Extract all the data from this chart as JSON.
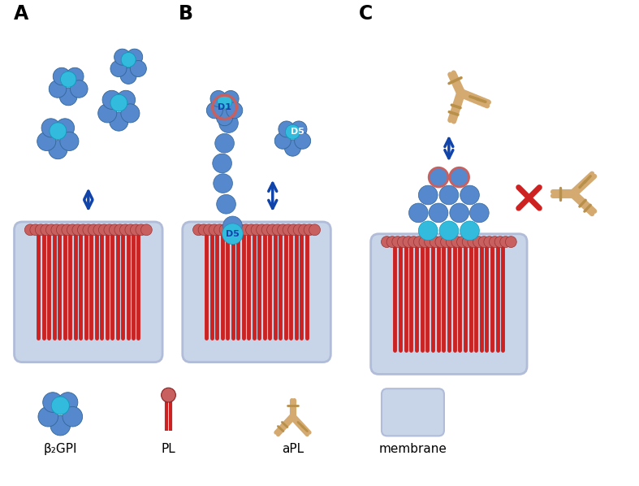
{
  "bg_color": "#ffffff",
  "membrane_color": "#c8d4e8",
  "membrane_border": "#b0bcd8",
  "phospholipid_head_color": "#c86060",
  "phospholipid_tail_color": "#cc2222",
  "b2gpi_main_color": "#5588cc",
  "b2gpi_accent_color": "#33bbdd",
  "antibody_color": "#d4aa70",
  "antibody_border": "#b8904a",
  "arrow_color": "#1144aa",
  "cross_color": "#cc2222",
  "label_color": "#111111",
  "panel_labels": [
    "A",
    "B",
    "C"
  ],
  "legend_labels": [
    "β₂GPI",
    "PL",
    "aPL",
    "membrane"
  ]
}
